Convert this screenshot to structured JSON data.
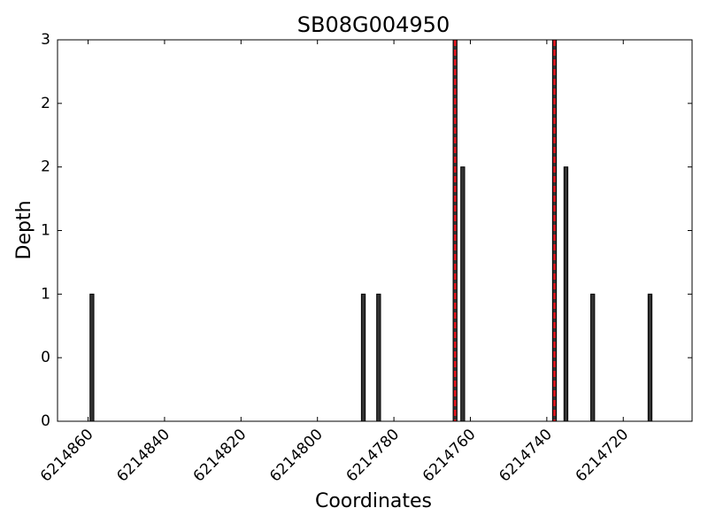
{
  "chart_data": {
    "type": "bar",
    "title": "SB08G004950",
    "x_label": "Coordinates",
    "y_label": "Depth",
    "x": [
      6214859,
      6214788,
      6214784,
      6214764,
      6214762,
      6214738,
      6214735,
      6214728,
      6214713
    ],
    "values": [
      1,
      1,
      1,
      3,
      2,
      3,
      2,
      1,
      1
    ],
    "color": "#333333",
    "vlines": [
      6214764,
      6214738
    ],
    "vline_color": "#e8141e",
    "xlim": [
      6214868,
      6214702
    ],
    "xticks": [
      6214860,
      6214840,
      6214820,
      6214800,
      6214780,
      6214760,
      6214740,
      6214720
    ],
    "ylim": [
      0,
      3
    ],
    "yticks": [
      0,
      {
        "value": 0.5,
        "label": "0"
      },
      1,
      {
        "value": 1.5,
        "label": "1"
      },
      2,
      {
        "value": 2.5,
        "label": "2"
      },
      3
    ]
  }
}
